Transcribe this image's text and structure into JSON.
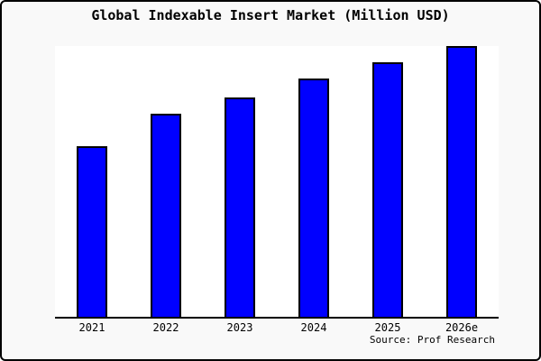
{
  "window": {
    "background_color": "#f9f9f9",
    "border_color": "#000000"
  },
  "chart": {
    "source_credit": "Source: Prof Research",
    "colors": {
      "bar_fill": "#0000ff",
      "bar_edge": "#000000",
      "plot_background": "#ffffff",
      "axis": "#000000",
      "text": "#000000"
    }
  },
  "chart_data": {
    "type": "bar",
    "title": "Global Indexable Insert Market (Million USD)",
    "categories": [
      "2021",
      "2022",
      "2023",
      "2024",
      "2025",
      "2026e"
    ],
    "values": [
      63,
      75,
      81,
      88,
      94,
      100
    ],
    "values_note": "No y-axis ticks or gridlines are shown in the chart; values are bar heights expressed as percent of the tallest (2026e) bar, estimated from pixel heights.",
    "series_name": "Global Indexable Insert Market (Million USD)",
    "xlabel": "",
    "ylabel": "",
    "ylim": [
      0,
      100
    ],
    "grid": false,
    "legend": false,
    "y_axis_labels_visible": false,
    "annotations": [
      "Source: Prof Research"
    ]
  }
}
